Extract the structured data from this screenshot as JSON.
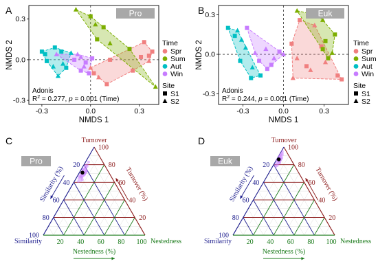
{
  "colors": {
    "Spr": "#f08080",
    "Sum": "#7cae00",
    "Aut": "#00bfc4",
    "Win": "#c77cff",
    "turnover": "#8b1a1a",
    "similarity": "#1a1a8b",
    "nestedness": "#1a7a1a",
    "facet_bg": "#a8a8a8",
    "points_ternary": "#c77cff"
  },
  "legend": {
    "time_title": "Time",
    "time_items": [
      "Spr",
      "Sum",
      "Aut",
      "Win"
    ],
    "site_title": "Site",
    "site_items": [
      "S1",
      "S2"
    ]
  },
  "chart_data": [
    {
      "panel": "A",
      "type": "scatter",
      "facet": "Pro",
      "xlabel": "NMDS 1",
      "ylabel": "NMDS 2",
      "xticks": [
        "-0.3",
        "0.0",
        "0.3"
      ],
      "yticks": [
        "0.3",
        "0.0",
        "-0.3"
      ],
      "xlim": [
        -0.38,
        0.42
      ],
      "ylim": [
        -0.33,
        0.4
      ],
      "stat_title": "Adonis",
      "stat_r2": "= 0.277, ",
      "stat_p": "= 0.001 (Time)",
      "points": [
        {
          "x": 0.33,
          "y": 0.13,
          "g": "Spr",
          "s": "S1"
        },
        {
          "x": 0.38,
          "y": 0.06,
          "g": "Spr",
          "s": "S1"
        },
        {
          "x": 0.36,
          "y": 0.03,
          "g": "Spr",
          "s": "S1"
        },
        {
          "x": 0.31,
          "y": 0.02,
          "g": "Spr",
          "s": "S1"
        },
        {
          "x": 0.12,
          "y": 0.0,
          "g": "Spr",
          "s": "S1"
        },
        {
          "x": 0.26,
          "y": -0.08,
          "g": "Spr",
          "s": "S1"
        },
        {
          "x": 0.1,
          "y": -0.18,
          "g": "Spr",
          "s": "S1"
        },
        {
          "x": 0.02,
          "y": -0.1,
          "g": "Spr",
          "s": "S1"
        },
        {
          "x": 0.0,
          "y": -0.06,
          "g": "Spr",
          "s": "S2"
        },
        {
          "x": 0.05,
          "y": -0.13,
          "g": "Spr",
          "s": "S2"
        },
        {
          "x": 0.36,
          "y": -0.01,
          "g": "Spr",
          "s": "S2"
        },
        {
          "x": 0.04,
          "y": 0.15,
          "g": "Sum",
          "s": "S1"
        },
        {
          "x": 0.08,
          "y": 0.24,
          "g": "Sum",
          "s": "S1"
        },
        {
          "x": 0.0,
          "y": 0.32,
          "g": "Sum",
          "s": "S1"
        },
        {
          "x": 0.24,
          "y": 0.08,
          "g": "Sum",
          "s": "S1"
        },
        {
          "x": -0.09,
          "y": 0.37,
          "g": "Sum",
          "s": "S2"
        },
        {
          "x": 0.03,
          "y": 0.26,
          "g": "Sum",
          "s": "S2"
        },
        {
          "x": 0.12,
          "y": 0.12,
          "g": "Sum",
          "s": "S2"
        },
        {
          "x": 0.4,
          "y": -0.2,
          "g": "Sum",
          "s": "S2"
        },
        {
          "x": -0.28,
          "y": 0.04,
          "g": "Aut",
          "s": "S1"
        },
        {
          "x": -0.22,
          "y": 0.09,
          "g": "Aut",
          "s": "S1"
        },
        {
          "x": -0.18,
          "y": 0.06,
          "g": "Aut",
          "s": "S1"
        },
        {
          "x": -0.15,
          "y": -0.06,
          "g": "Aut",
          "s": "S1"
        },
        {
          "x": -0.27,
          "y": -0.01,
          "g": "Aut",
          "s": "S1"
        },
        {
          "x": -0.3,
          "y": 0.06,
          "g": "Aut",
          "s": "S1"
        },
        {
          "x": -0.2,
          "y": -0.12,
          "g": "Aut",
          "s": "S2"
        },
        {
          "x": -0.23,
          "y": -0.05,
          "g": "Aut",
          "s": "S2"
        },
        {
          "x": -0.12,
          "y": 0.05,
          "g": "Aut",
          "s": "S2"
        },
        {
          "x": -0.17,
          "y": -0.03,
          "g": "Aut",
          "s": "S2"
        },
        {
          "x": -0.1,
          "y": 0.0,
          "g": "Win",
          "s": "S1"
        },
        {
          "x": -0.03,
          "y": -0.02,
          "g": "Win",
          "s": "S1"
        },
        {
          "x": 0.01,
          "y": 0.01,
          "g": "Win",
          "s": "S1"
        },
        {
          "x": -0.06,
          "y": -0.08,
          "g": "Win",
          "s": "S1"
        },
        {
          "x": -0.01,
          "y": -0.1,
          "g": "Win",
          "s": "S1"
        },
        {
          "x": -0.21,
          "y": 0.04,
          "g": "Win",
          "s": "S2"
        },
        {
          "x": -0.08,
          "y": 0.04,
          "g": "Win",
          "s": "S2"
        },
        {
          "x": -0.04,
          "y": -0.05,
          "g": "Win",
          "s": "S2"
        },
        {
          "x": -0.06,
          "y": 0.02,
          "g": "Win",
          "s": "S2"
        }
      ]
    },
    {
      "panel": "B",
      "type": "scatter",
      "facet": "Euk",
      "xlabel": "NMDS 1",
      "ylabel": "NMDS 2",
      "xticks": [
        "-0.3",
        "0.0",
        "0.3"
      ],
      "yticks": [
        "0.3",
        "0.0",
        "-0.3"
      ],
      "xlim": [
        -0.48,
        0.48
      ],
      "ylim": [
        -0.38,
        0.37
      ],
      "stat_title": "Adonis",
      "stat_r2": "= 0.244, ",
      "stat_p": "= 0.001 (Time)",
      "points": [
        {
          "x": 0.06,
          "y": 0.08,
          "g": "Spr",
          "s": "S1"
        },
        {
          "x": 0.12,
          "y": 0.26,
          "g": "Spr",
          "s": "S1"
        },
        {
          "x": 0.17,
          "y": -0.09,
          "g": "Spr",
          "s": "S1"
        },
        {
          "x": 0.28,
          "y": 0.06,
          "g": "Spr",
          "s": "S1"
        },
        {
          "x": 0.43,
          "y": -0.19,
          "g": "Spr",
          "s": "S1"
        },
        {
          "x": 0.4,
          "y": -0.16,
          "g": "Spr",
          "s": "S1"
        },
        {
          "x": 0.2,
          "y": -0.12,
          "g": "Spr",
          "s": "S2"
        },
        {
          "x": 0.1,
          "y": -0.03,
          "g": "Spr",
          "s": "S2"
        },
        {
          "x": 0.31,
          "y": -0.06,
          "g": "Spr",
          "s": "S2"
        },
        {
          "x": 0.23,
          "y": 0.22,
          "g": "Spr",
          "s": "S2"
        },
        {
          "x": 0.07,
          "y": -0.18,
          "g": "Spr",
          "s": "S2"
        },
        {
          "x": 0.38,
          "y": 0.15,
          "g": "Sum",
          "s": "S1"
        },
        {
          "x": 0.31,
          "y": 0.1,
          "g": "Sum",
          "s": "S1"
        },
        {
          "x": 0.29,
          "y": 0.04,
          "g": "Sum",
          "s": "S1"
        },
        {
          "x": 0.33,
          "y": -0.03,
          "g": "Sum",
          "s": "S1"
        },
        {
          "x": 0.1,
          "y": 0.33,
          "g": "Sum",
          "s": "S2"
        },
        {
          "x": 0.24,
          "y": 0.3,
          "g": "Sum",
          "s": "S2"
        },
        {
          "x": 0.29,
          "y": 0.26,
          "g": "Sum",
          "s": "S2"
        },
        {
          "x": 0.36,
          "y": 0.01,
          "g": "Sum",
          "s": "S2"
        },
        {
          "x": -0.41,
          "y": 0.2,
          "g": "Aut",
          "s": "S1"
        },
        {
          "x": -0.36,
          "y": 0.14,
          "g": "Aut",
          "s": "S1"
        },
        {
          "x": -0.32,
          "y": -0.05,
          "g": "Aut",
          "s": "S1"
        },
        {
          "x": -0.24,
          "y": -0.18,
          "g": "Aut",
          "s": "S1"
        },
        {
          "x": -0.17,
          "y": -0.16,
          "g": "Aut",
          "s": "S1"
        },
        {
          "x": -0.34,
          "y": 0.18,
          "g": "Aut",
          "s": "S2"
        },
        {
          "x": -0.28,
          "y": 0.05,
          "g": "Aut",
          "s": "S2"
        },
        {
          "x": -0.23,
          "y": -0.1,
          "g": "Aut",
          "s": "S2"
        },
        {
          "x": -0.31,
          "y": 0.11,
          "g": "Aut",
          "s": "S2"
        },
        {
          "x": -0.27,
          "y": 0.2,
          "g": "Win",
          "s": "S1"
        },
        {
          "x": -0.03,
          "y": 0.02,
          "g": "Win",
          "s": "S1"
        },
        {
          "x": -0.09,
          "y": -0.08,
          "g": "Win",
          "s": "S1"
        },
        {
          "x": -0.12,
          "y": -0.11,
          "g": "Win",
          "s": "S1"
        },
        {
          "x": -0.18,
          "y": -0.05,
          "g": "Win",
          "s": "S1"
        },
        {
          "x": -0.21,
          "y": 0.01,
          "g": "Win",
          "s": "S2"
        },
        {
          "x": -0.13,
          "y": 0.04,
          "g": "Win",
          "s": "S2"
        },
        {
          "x": -0.07,
          "y": -0.03,
          "g": "Win",
          "s": "S2"
        },
        {
          "x": 0.0,
          "y": 0.0,
          "g": "Win",
          "s": "S2"
        }
      ]
    },
    {
      "panel": "C",
      "type": "scatter",
      "subtype": "ternary",
      "facet": "Pro",
      "axes": {
        "top": "Turnover",
        "top_axis_title": "Turnover (%)",
        "left": "Similarity",
        "left_axis_title": "Similarity (%)",
        "right": "Nestedness",
        "bottom_axis_title": "Nestedness (%)"
      },
      "ticks": [
        "20",
        "40",
        "60",
        "80",
        "100"
      ],
      "mean": {
        "turnover": 71,
        "similarity": 26,
        "nestedness": 3
      },
      "points": [
        {
          "turnover": 83,
          "similarity": 14,
          "nestedness": 3
        },
        {
          "turnover": 79,
          "similarity": 19,
          "nestedness": 2
        },
        {
          "turnover": 76,
          "similarity": 21,
          "nestedness": 3
        },
        {
          "turnover": 74,
          "similarity": 21,
          "nestedness": 5
        },
        {
          "turnover": 72,
          "similarity": 25,
          "nestedness": 3
        },
        {
          "turnover": 70,
          "similarity": 27,
          "nestedness": 3
        },
        {
          "turnover": 68,
          "similarity": 29,
          "nestedness": 3
        },
        {
          "turnover": 66,
          "similarity": 31,
          "nestedness": 3
        },
        {
          "turnover": 64,
          "similarity": 33,
          "nestedness": 3
        },
        {
          "turnover": 67,
          "similarity": 28,
          "nestedness": 5
        },
        {
          "turnover": 65,
          "similarity": 30,
          "nestedness": 5
        },
        {
          "turnover": 71,
          "similarity": 23,
          "nestedness": 6
        },
        {
          "turnover": 73,
          "similarity": 24,
          "nestedness": 3
        },
        {
          "turnover": 75,
          "similarity": 23,
          "nestedness": 2
        },
        {
          "turnover": 77,
          "similarity": 20,
          "nestedness": 3
        },
        {
          "turnover": 69,
          "similarity": 28,
          "nestedness": 3
        },
        {
          "turnover": 62,
          "similarity": 32,
          "nestedness": 6
        },
        {
          "turnover": 61,
          "similarity": 35,
          "nestedness": 4
        },
        {
          "turnover": 70,
          "similarity": 24,
          "nestedness": 6
        },
        {
          "turnover": 72,
          "similarity": 22,
          "nestedness": 6
        },
        {
          "turnover": 68,
          "similarity": 26,
          "nestedness": 6
        },
        {
          "turnover": 66,
          "similarity": 29,
          "nestedness": 5
        },
        {
          "turnover": 78,
          "similarity": 18,
          "nestedness": 4
        },
        {
          "turnover": 80,
          "similarity": 17,
          "nestedness": 3
        },
        {
          "turnover": 74,
          "similarity": 24,
          "nestedness": 2
        },
        {
          "turnover": 63,
          "similarity": 30,
          "nestedness": 7
        },
        {
          "turnover": 71,
          "similarity": 27,
          "nestedness": 2
        },
        {
          "turnover": 67,
          "similarity": 31,
          "nestedness": 2
        },
        {
          "turnover": 69,
          "similarity": 25,
          "nestedness": 6
        },
        {
          "turnover": 73,
          "similarity": 21,
          "nestedness": 6
        }
      ]
    },
    {
      "panel": "D",
      "type": "scatter",
      "subtype": "ternary",
      "facet": "Euk",
      "axes": {
        "top": "Turnover",
        "top_axis_title": "Turnover (%)",
        "left": "Similarity",
        "left_axis_title": "Similarity (%)",
        "right": "Nestedness",
        "bottom_axis_title": "Nestedness (%)"
      },
      "ticks": [
        "20",
        "40",
        "60",
        "80",
        "100"
      ],
      "mean": {
        "turnover": 86,
        "similarity": 12,
        "nestedness": 2
      },
      "points": [
        {
          "turnover": 95,
          "similarity": 4,
          "nestedness": 1
        },
        {
          "turnover": 92,
          "similarity": 7,
          "nestedness": 1
        },
        {
          "turnover": 90,
          "similarity": 8,
          "nestedness": 2
        },
        {
          "turnover": 88,
          "similarity": 10,
          "nestedness": 2
        },
        {
          "turnover": 86,
          "similarity": 12,
          "nestedness": 2
        },
        {
          "turnover": 84,
          "similarity": 14,
          "nestedness": 2
        },
        {
          "turnover": 82,
          "similarity": 16,
          "nestedness": 2
        },
        {
          "turnover": 80,
          "similarity": 18,
          "nestedness": 2
        },
        {
          "turnover": 85,
          "similarity": 11,
          "nestedness": 4
        },
        {
          "turnover": 83,
          "similarity": 13,
          "nestedness": 4
        },
        {
          "turnover": 87,
          "similarity": 9,
          "nestedness": 4
        },
        {
          "turnover": 89,
          "similarity": 10,
          "nestedness": 1
        },
        {
          "turnover": 91,
          "similarity": 6,
          "nestedness": 3
        },
        {
          "turnover": 87,
          "similarity": 12,
          "nestedness": 1
        },
        {
          "turnover": 85,
          "similarity": 14,
          "nestedness": 1
        },
        {
          "turnover": 81,
          "similarity": 15,
          "nestedness": 4
        },
        {
          "turnover": 79,
          "similarity": 17,
          "nestedness": 4
        },
        {
          "turnover": 84,
          "similarity": 12,
          "nestedness": 4
        },
        {
          "turnover": 88,
          "similarity": 8,
          "nestedness": 4
        },
        {
          "turnover": 90,
          "similarity": 9,
          "nestedness": 1
        },
        {
          "turnover": 86,
          "similarity": 10,
          "nestedness": 4
        },
        {
          "turnover": 82,
          "similarity": 13,
          "nestedness": 5
        },
        {
          "turnover": 93,
          "similarity": 5,
          "nestedness": 2
        },
        {
          "turnover": 78,
          "similarity": 19,
          "nestedness": 3
        }
      ]
    }
  ]
}
